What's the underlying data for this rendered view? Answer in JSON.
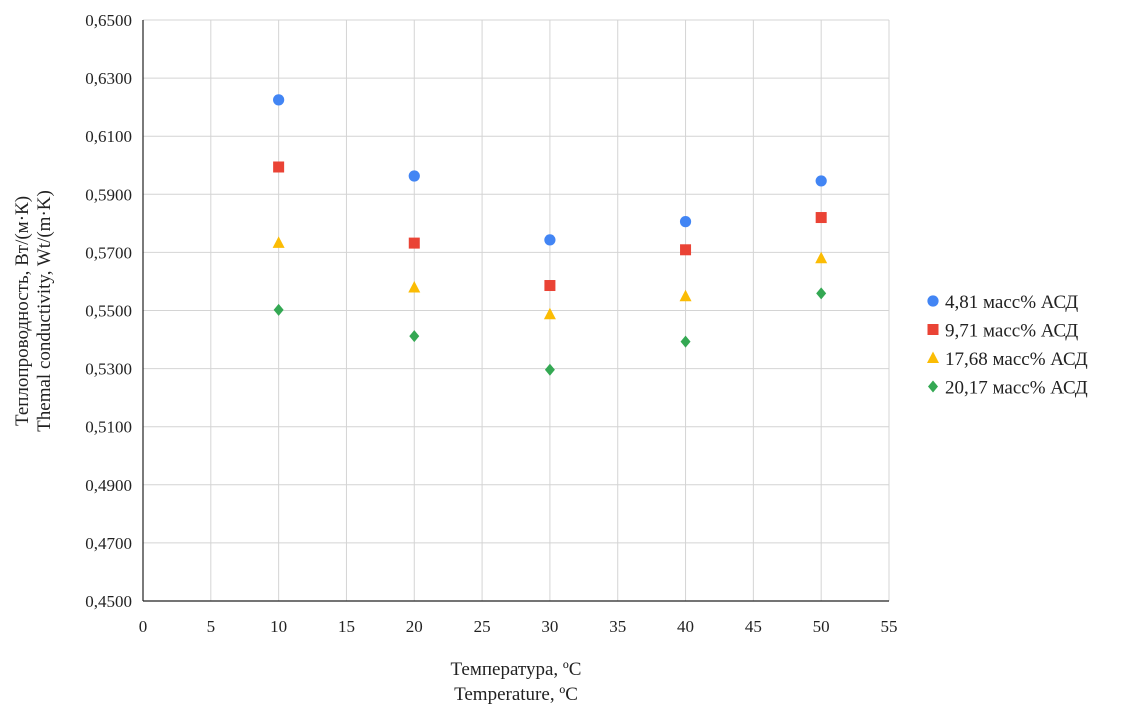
{
  "chart_data": {
    "type": "scatter",
    "xlabel": [
      "Температура, ºC",
      "Temperature, ºC"
    ],
    "ylabel": [
      "Теплопроводность, Вт/(м·К)",
      "Themal conductivity, Wt/(m·K)"
    ],
    "xlim": [
      0,
      55
    ],
    "ylim": [
      0.45,
      0.65
    ],
    "xticks": [
      0,
      5,
      10,
      15,
      20,
      25,
      30,
      35,
      40,
      45,
      50,
      55
    ],
    "yticks": [
      0.45,
      0.47,
      0.49,
      0.51,
      0.53,
      0.55,
      0.57,
      0.59,
      0.61,
      0.63,
      0.65
    ],
    "xtick_labels": [
      "0",
      "5",
      "10",
      "15",
      "20",
      "25",
      "30",
      "35",
      "40",
      "45",
      "50",
      "55"
    ],
    "ytick_labels": [
      "0,4500",
      "0,4700",
      "0,4900",
      "0,5100",
      "0,5300",
      "0,5500",
      "0,5700",
      "0,5900",
      "0,6100",
      "0,6300",
      "0,6500"
    ],
    "grid": true,
    "legend_position": "right",
    "series": [
      {
        "name": "4,81 масс% АСД",
        "marker": "circle",
        "color": "#4285F4",
        "x": [
          10,
          20,
          30,
          40,
          50
        ],
        "y": [
          0.6225,
          0.5963,
          0.5743,
          0.5806,
          0.5946
        ]
      },
      {
        "name": "9,71 масс% АСД",
        "marker": "square",
        "color": "#EA4335",
        "x": [
          10,
          20,
          30,
          40,
          50
        ],
        "y": [
          0.5994,
          0.5732,
          0.5586,
          0.5709,
          0.582
        ]
      },
      {
        "name": "17,68 масс% АСД",
        "marker": "triangle",
        "color": "#FBBC04",
        "x": [
          10,
          20,
          30,
          40,
          50
        ],
        "y": [
          0.5733,
          0.5579,
          0.5487,
          0.5549,
          0.568
        ]
      },
      {
        "name": "20,17 масс% АСД",
        "marker": "diamond",
        "color": "#34A853",
        "x": [
          10,
          20,
          30,
          40,
          50
        ],
        "y": [
          0.5502,
          0.5412,
          0.5296,
          0.5393,
          0.5559
        ]
      }
    ]
  }
}
